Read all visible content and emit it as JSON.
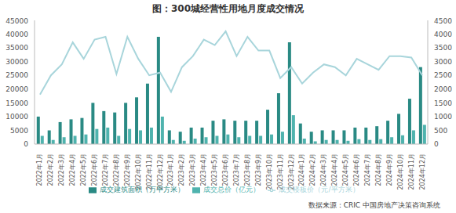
{
  "chart_data": {
    "type": "bar",
    "title": "图：300城经营性用地月度成交情况",
    "source": "数据来源：CRIC 中国房地产决策咨询系统",
    "categories": [
      "2022年1月",
      "2022年2月",
      "2022年3月",
      "2022年4月",
      "2022年5月",
      "2022年6月",
      "2022年7月",
      "2022年8月",
      "2022年9月",
      "2022年10月",
      "2022年11月",
      "2022年12月",
      "2023年1月",
      "2023年2月",
      "2023年3月",
      "2023年4月",
      "2023年5月",
      "2023年6月",
      "2023年7月",
      "2023年8月",
      "2023年9月",
      "2023年10月",
      "2023年11月",
      "2023年12月",
      "2024年1月",
      "2024年2月",
      "2024年3月",
      "2024年4月",
      "2024年5月",
      "2024年6月",
      "2024年7月",
      "2024年8月",
      "2024年9月",
      "2024年10月",
      "2024年11月",
      "2024年12月"
    ],
    "series": [
      {
        "name": "成交建筑面积（万平方米）",
        "type": "bar",
        "color": "#2a8a84",
        "values": [
          10000,
          5000,
          8000,
          9000,
          9500,
          15000,
          12000,
          11500,
          15000,
          17000,
          22000,
          39000,
          5000,
          4500,
          6000,
          6000,
          8500,
          9000,
          8500,
          8500,
          8500,
          12500,
          18500,
          37000,
          7500,
          4500,
          5000,
          5000,
          5000,
          6000,
          6000,
          6500,
          8500,
          11000,
          16500,
          28000
        ]
      },
      {
        "name": "成交总价（亿元）",
        "type": "bar",
        "color": "#4fb3ae",
        "values": [
          3000,
          1500,
          2500,
          3000,
          3500,
          5500,
          6000,
          3000,
          5500,
          5000,
          6000,
          10000,
          1500,
          1200,
          2000,
          2500,
          3000,
          3500,
          2500,
          3000,
          3000,
          3500,
          4500,
          10500,
          2000,
          1000,
          1500,
          1500,
          1200,
          1800,
          1500,
          1800,
          2500,
          3200,
          5000,
          7000
        ]
      },
      {
        "name": "成交楼板价（元/平方米）",
        "type": "line",
        "axis": "y2",
        "color": "#a8d5db",
        "marker": "none",
        "values": [
          1800,
          2500,
          2900,
          3700,
          3100,
          3800,
          3900,
          2550,
          3900,
          3100,
          2500,
          2600,
          1900,
          2800,
          3200,
          3800,
          3600,
          4100,
          3200,
          3900,
          3400,
          3400,
          2400,
          2800,
          2200,
          2600,
          2900,
          2800,
          2500,
          3100,
          2900,
          2700,
          3200,
          3200,
          3150,
          2500
        ]
      }
    ],
    "ylim": [
      0,
      45000
    ],
    "yticks": [
      0,
      5000,
      10000,
      15000,
      20000,
      25000,
      30000,
      35000,
      40000,
      45000
    ],
    "y2lim": [
      0,
      4500
    ],
    "y2ticks": [
      0,
      500,
      1000,
      1500,
      2000,
      2500,
      3000,
      3500,
      4000,
      4500
    ],
    "legend": "bottom",
    "grid": false
  }
}
